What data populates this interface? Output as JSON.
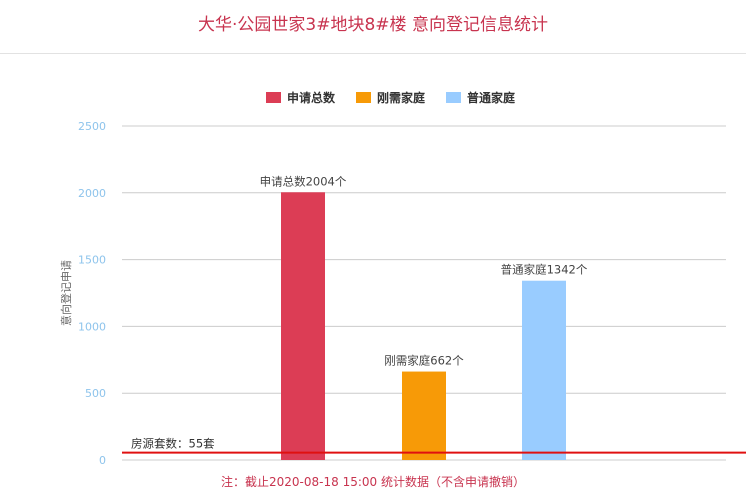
{
  "title": "大华·公园世家3#地块8#楼 意向登记信息统计",
  "footnote": "注：截止2020-08-18 15:00 统计数据（不含申请撤销）",
  "colors": {
    "title": "#c8344f",
    "grid": "#cccccc",
    "tick_label": "#8ec4ec",
    "ylabel": "#666666",
    "data_label": "#444444",
    "reference_line": "#e01010"
  },
  "chart_data": {
    "type": "bar",
    "title": "大华·公园世家3#地块8#楼 意向登记信息统计",
    "xlabel": "",
    "ylabel": "意向登记申请",
    "ylim": [
      0,
      2500
    ],
    "yticks": [
      0,
      500,
      1000,
      1500,
      2000,
      2500
    ],
    "grid": true,
    "legend_position": "top-center",
    "series": [
      {
        "name": "申请总数",
        "value": 2004,
        "color": "#dc3d55",
        "label": "申请总数2004个"
      },
      {
        "name": "刚需家庭",
        "value": 662,
        "color": "#f79a07",
        "label": "刚需家庭662个"
      },
      {
        "name": "普通家庭",
        "value": 1342,
        "color": "#99ccff",
        "label": "普通家庭1342个"
      }
    ],
    "reference_line": {
      "value": 55,
      "label": "房源套数：55套"
    }
  }
}
